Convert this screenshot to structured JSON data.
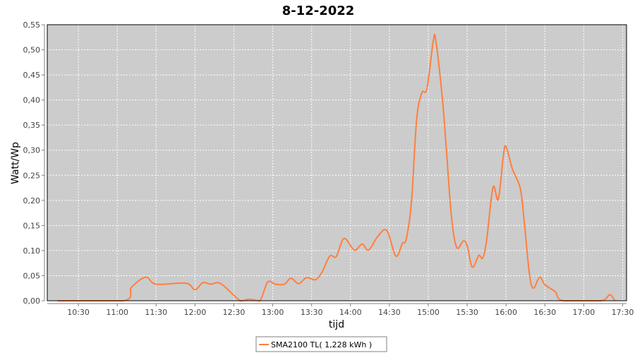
{
  "chart_data": {
    "type": "line",
    "title": "8-12-2022",
    "xlabel": "tijd",
    "ylabel": "Watt/Wp",
    "ylim": [
      0,
      0.55
    ],
    "xlim": [
      "10:06",
      "17:33"
    ],
    "grid": true,
    "background_color": "#cccccc",
    "series_color": "#ff7f3f",
    "legend_position": "bottom",
    "x_ticks": [
      "10:30",
      "11:00",
      "11:30",
      "12:00",
      "12:30",
      "13:00",
      "13:30",
      "14:00",
      "14:30",
      "15:00",
      "15:30",
      "16:00",
      "16:30",
      "17:00",
      "17:30"
    ],
    "y_ticks": [
      "0,00",
      "0,05",
      "0,10",
      "0,15",
      "0,20",
      "0,25",
      "0,30",
      "0,35",
      "0,40",
      "0,45",
      "0,50",
      "0,55"
    ],
    "series": [
      {
        "name": "SMA2100 TL( 1,228 kWh )",
        "x": [
          "10:14",
          "11:05",
          "11:11",
          "11:22",
          "11:30",
          "11:53",
          "12:00",
          "12:06",
          "12:12",
          "12:20",
          "12:35",
          "12:42",
          "12:50",
          "12:56",
          "13:02",
          "13:09",
          "13:14",
          "13:20",
          "13:26",
          "13:33",
          "13:38",
          "13:44",
          "13:49",
          "13:55",
          "14:03",
          "14:09",
          "14:14",
          "14:21",
          "14:28",
          "14:35",
          "14:40",
          "14:43",
          "14:47",
          "14:51",
          "14:55",
          "14:59",
          "15:04",
          "15:06",
          "15:11",
          "15:14",
          "15:18",
          "15:22",
          "15:27",
          "15:30",
          "15:34",
          "15:39",
          "15:42",
          "15:45",
          "15:50",
          "15:54",
          "15:58",
          "16:00",
          "16:05",
          "16:11",
          "16:14",
          "16:18",
          "16:21",
          "16:26",
          "16:30",
          "16:38",
          "16:44",
          "17:13",
          "17:20",
          "17:24"
        ],
        "y": [
          0,
          0,
          0.027,
          0.047,
          0.033,
          0.035,
          0.022,
          0.036,
          0.033,
          0.034,
          0,
          0.003,
          0,
          0.037,
          0.033,
          0.033,
          0.045,
          0.034,
          0.046,
          0.042,
          0.057,
          0.089,
          0.088,
          0.124,
          0.101,
          0.113,
          0.101,
          0.128,
          0.14,
          0.089,
          0.114,
          0.123,
          0.196,
          0.36,
          0.414,
          0.423,
          0.52,
          0.515,
          0.4,
          0.3,
          0.165,
          0.106,
          0.119,
          0.11,
          0.067,
          0.09,
          0.085,
          0.12,
          0.226,
          0.202,
          0.29,
          0.307,
          0.262,
          0.224,
          0.159,
          0.055,
          0.025,
          0.047,
          0.032,
          0.018,
          0,
          0,
          0.012,
          0
        ]
      }
    ]
  }
}
